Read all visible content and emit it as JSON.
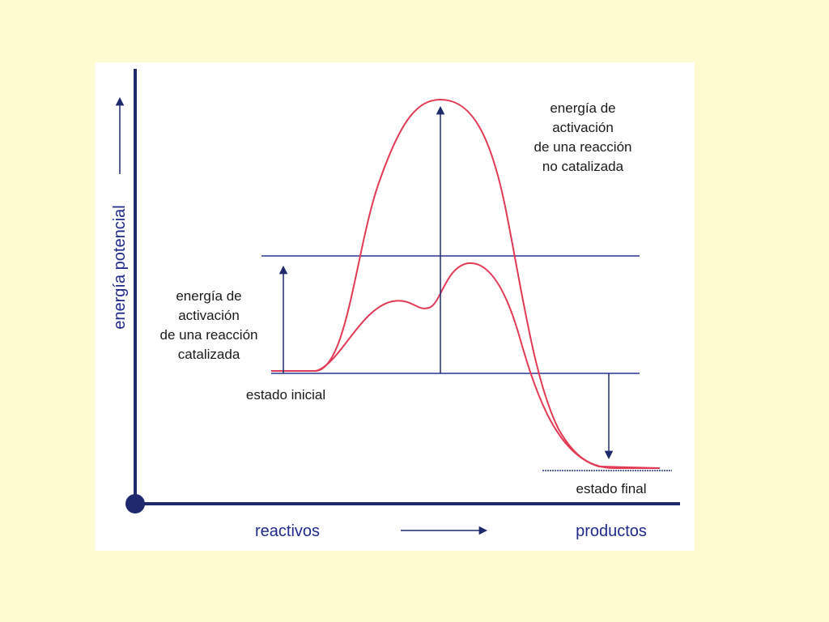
{
  "axis": {
    "y_label": "energía potencial",
    "x_start": "reactivos",
    "x_end": "productos"
  },
  "annotations": {
    "uncatalyzed": [
      "energía de",
      "activación",
      "de una reacción",
      "no catalizada"
    ],
    "catalyzed": [
      "energía de",
      "activación",
      "de una reacción",
      "catalizada"
    ],
    "initial_state": "estado inicial",
    "final_state": "estado final"
  }
}
